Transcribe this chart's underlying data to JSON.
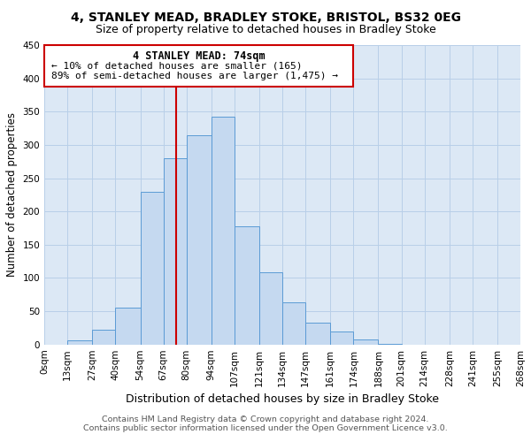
{
  "title": "4, STANLEY MEAD, BRADLEY STOKE, BRISTOL, BS32 0EG",
  "subtitle": "Size of property relative to detached houses in Bradley Stoke",
  "xlabel": "Distribution of detached houses by size in Bradley Stoke",
  "ylabel": "Number of detached properties",
  "bar_color": "#c5d9f0",
  "bar_edge_color": "#5b9bd5",
  "background_color": "#ffffff",
  "ax_background_color": "#dce8f5",
  "grid_color": "#b8cfe8",
  "annotation_box_color": "#cc0000",
  "vline_color": "#cc0000",
  "annotation_text_line1": "4 STANLEY MEAD: 74sqm",
  "annotation_text_line2": "← 10% of detached houses are smaller (165)",
  "annotation_text_line3": "89% of semi-detached houses are larger (1,475) →",
  "property_size": 74,
  "bin_edges": [
    0,
    13,
    27,
    40,
    54,
    67,
    80,
    94,
    107,
    121,
    134,
    147,
    161,
    174,
    188,
    201,
    214,
    228,
    241,
    255,
    268
  ],
  "bin_labels": [
    "0sqm",
    "13sqm",
    "27sqm",
    "40sqm",
    "54sqm",
    "67sqm",
    "80sqm",
    "94sqm",
    "107sqm",
    "121sqm",
    "134sqm",
    "147sqm",
    "161sqm",
    "174sqm",
    "188sqm",
    "201sqm",
    "214sqm",
    "228sqm",
    "241sqm",
    "255sqm",
    "268sqm"
  ],
  "counts": [
    0,
    6,
    22,
    55,
    230,
    280,
    315,
    342,
    177,
    108,
    63,
    33,
    19,
    8,
    1,
    0,
    0,
    0,
    0,
    0
  ],
  "ylim": [
    0,
    450
  ],
  "yticks": [
    0,
    50,
    100,
    150,
    200,
    250,
    300,
    350,
    400,
    450
  ],
  "footer_line1": "Contains HM Land Registry data © Crown copyright and database right 2024.",
  "footer_line2": "Contains public sector information licensed under the Open Government Licence v3.0.",
  "title_fontsize": 10,
  "subtitle_fontsize": 9,
  "xlabel_fontsize": 9,
  "ylabel_fontsize": 8.5,
  "tick_fontsize": 7.5,
  "footer_fontsize": 6.8,
  "annot_fontsize1": 8.5,
  "annot_fontsize2": 8.0
}
